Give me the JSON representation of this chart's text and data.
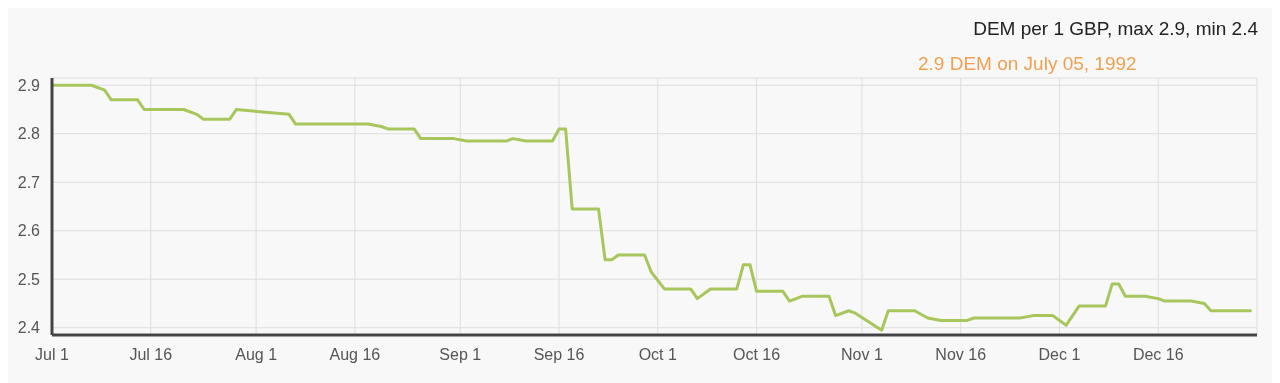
{
  "chart_data": {
    "type": "line",
    "title": "DEM per 1 GBP, max 2.9, min 2.4",
    "subtitle": "2.9 DEM on July 05, 1992",
    "x": [
      "1992-07-01",
      "1992-07-07",
      "1992-07-09",
      "1992-07-10",
      "1992-07-14",
      "1992-07-15",
      "1992-07-21",
      "1992-07-23",
      "1992-07-24",
      "1992-07-28",
      "1992-07-29",
      "1992-08-06",
      "1992-08-07",
      "1992-08-18",
      "1992-08-20",
      "1992-08-21",
      "1992-08-25",
      "1992-08-26",
      "1992-08-31",
      "1992-09-02",
      "1992-09-08",
      "1992-09-09",
      "1992-09-11",
      "1992-09-15",
      "1992-09-16",
      "1992-09-17",
      "1992-09-18",
      "1992-09-22",
      "1992-09-23",
      "1992-09-24",
      "1992-09-25",
      "1992-09-29",
      "1992-09-30",
      "1992-10-02",
      "1992-10-06",
      "1992-10-07",
      "1992-10-09",
      "1992-10-13",
      "1992-10-14",
      "1992-10-15",
      "1992-10-16",
      "1992-10-20",
      "1992-10-21",
      "1992-10-23",
      "1992-10-27",
      "1992-10-28",
      "1992-10-30",
      "1992-10-31",
      "1992-11-04",
      "1992-11-05",
      "1992-11-09",
      "1992-11-11",
      "1992-11-13",
      "1992-11-17",
      "1992-11-18",
      "1992-11-25",
      "1992-11-27",
      "1992-11-30",
      "1992-12-02",
      "1992-12-04",
      "1992-12-08",
      "1992-12-09",
      "1992-12-10",
      "1992-12-11",
      "1992-12-14",
      "1992-12-16",
      "1992-12-17",
      "1992-12-21",
      "1992-12-23",
      "1992-12-24",
      "1992-12-28",
      "1992-12-30"
    ],
    "series": [
      {
        "color": "#a8c65c",
        "values": [
          2.9,
          2.9,
          2.89,
          2.87,
          2.87,
          2.85,
          2.85,
          2.84,
          2.83,
          2.83,
          2.85,
          2.84,
          2.82,
          2.82,
          2.815,
          2.81,
          2.81,
          2.79,
          2.79,
          2.785,
          2.785,
          2.79,
          2.785,
          2.785,
          2.81,
          2.81,
          2.645,
          2.645,
          2.54,
          2.54,
          2.55,
          2.55,
          2.515,
          2.48,
          2.48,
          2.46,
          2.48,
          2.48,
          2.53,
          2.53,
          2.475,
          2.475,
          2.455,
          2.465,
          2.465,
          2.425,
          2.435,
          2.43,
          2.395,
          2.435,
          2.435,
          2.42,
          2.415,
          2.415,
          2.42,
          2.42,
          2.425,
          2.425,
          2.405,
          2.445,
          2.445,
          2.49,
          2.49,
          2.465,
          2.465,
          2.46,
          2.455,
          2.455,
          2.45,
          2.435,
          2.435,
          2.435
        ]
      }
    ],
    "xlim": [
      "1992-07-01",
      "1992-12-31"
    ],
    "xticks": [
      {
        "value": "1992-07-01",
        "label": "Jul 1"
      },
      {
        "value": "1992-07-16",
        "label": "Jul 16"
      },
      {
        "value": "1992-08-01",
        "label": "Aug 1"
      },
      {
        "value": "1992-08-16",
        "label": "Aug 16"
      },
      {
        "value": "1992-09-01",
        "label": "Sep 1"
      },
      {
        "value": "1992-09-16",
        "label": "Sep 16"
      },
      {
        "value": "1992-10-01",
        "label": "Oct 1"
      },
      {
        "value": "1992-10-16",
        "label": "Oct 16"
      },
      {
        "value": "1992-11-01",
        "label": "Nov 1"
      },
      {
        "value": "1992-11-16",
        "label": "Nov 16"
      },
      {
        "value": "1992-12-01",
        "label": "Dec 1"
      },
      {
        "value": "1992-12-16",
        "label": "Dec 16"
      }
    ],
    "ylim": [
      2.385,
      2.915
    ],
    "yticks": [
      2.4,
      2.5,
      2.6,
      2.7,
      2.8,
      2.9
    ],
    "grid": true,
    "legend": false,
    "marker": "none",
    "line_style": "solid"
  }
}
